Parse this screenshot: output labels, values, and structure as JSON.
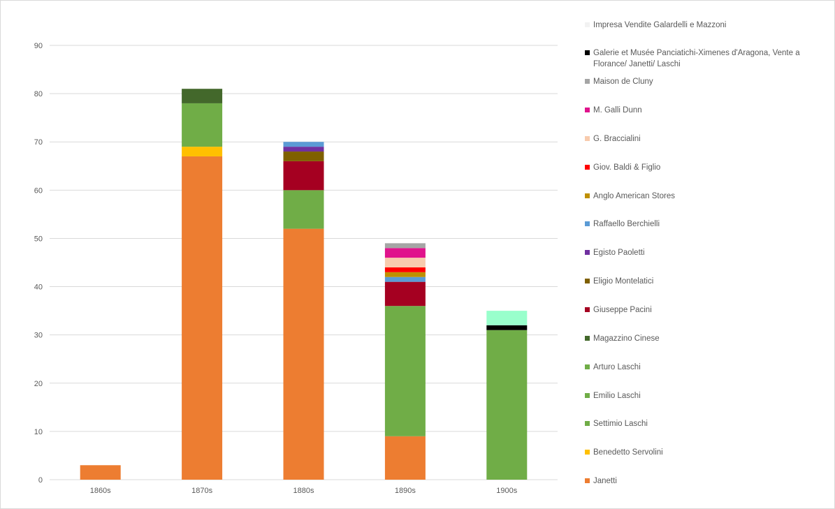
{
  "chart_data": {
    "type": "bar",
    "stacked": true,
    "categories": [
      "1860s",
      "1870s",
      "1880s",
      "1890s",
      "1900s"
    ],
    "ylim": [
      0,
      90
    ],
    "yticks": [
      0,
      10,
      20,
      30,
      40,
      50,
      60,
      70,
      80,
      90
    ],
    "grid": true,
    "legend_position": "right",
    "series": [
      {
        "name": "Janetti",
        "color": "#ED7D31",
        "values": [
          3,
          67,
          52,
          9,
          0
        ]
      },
      {
        "name": "Benedetto Servolini",
        "color": "#FFC000",
        "values": [
          0,
          2,
          0,
          0,
          0
        ]
      },
      {
        "name": "Settimio Laschi",
        "color": "#70AD47",
        "values": [
          0,
          9,
          8,
          27,
          31
        ]
      },
      {
        "name": "Emilio Laschi",
        "color": "#70AD47",
        "values": [
          0,
          0,
          0,
          0,
          0
        ]
      },
      {
        "name": "Arturo Laschi",
        "color": "#70AD47",
        "values": [
          0,
          0,
          0,
          0,
          0
        ]
      },
      {
        "name": "Magazzino Cinese",
        "color": "#43682B",
        "values": [
          0,
          3,
          0,
          0,
          0
        ]
      },
      {
        "name": "Giuseppe Pacini",
        "color": "#A50021",
        "values": [
          0,
          0,
          6,
          5,
          0
        ]
      },
      {
        "name": "Eligio Montelatici",
        "color": "#7F6000",
        "values": [
          0,
          0,
          2,
          0,
          0
        ]
      },
      {
        "name": "Egisto Paoletti",
        "color": "#7030A0",
        "values": [
          0,
          0,
          1,
          0,
          0
        ]
      },
      {
        "name": "Raffaello Berchielli",
        "color": "#5B9BD5",
        "values": [
          0,
          0,
          1,
          1,
          0
        ]
      },
      {
        "name": "Anglo American Stores",
        "color": "#BF9000",
        "values": [
          0,
          0,
          0,
          1,
          0
        ]
      },
      {
        "name": "Giov. Baldi & Figlio",
        "color": "#FF0000",
        "values": [
          0,
          0,
          0,
          1,
          0
        ]
      },
      {
        "name": "G. Braccialini",
        "color": "#F8CBAD",
        "values": [
          0,
          0,
          0,
          2,
          0
        ]
      },
      {
        "name": "M. Galli Dunn",
        "color": "#E0138C",
        "values": [
          0,
          0,
          0,
          2,
          0
        ]
      },
      {
        "name": "Maison de Cluny",
        "color": "#A5A5A5",
        "values": [
          0,
          0,
          0,
          1,
          0
        ]
      },
      {
        "name": "Galerie et Musée Panciatichi-Ximenes d'Aragona, Vente a Florance/ Janetti/ Laschi",
        "color": "#000000",
        "values": [
          0,
          0,
          0,
          0,
          1
        ]
      },
      {
        "name": "Impresa Vendite Galardelli e Mazzoni",
        "color": "#99FFCC",
        "values": [
          0,
          0,
          0,
          0,
          3
        ]
      }
    ],
    "legend_order": [
      "Impresa Vendite Galardelli e Mazzoni",
      "Galerie et Musée Panciatichi-Ximenes d'Aragona, Vente a Florance/ Janetti/ Laschi",
      "Maison de Cluny",
      "M. Galli Dunn",
      "G. Braccialini",
      "Giov. Baldi & Figlio",
      "Anglo American Stores",
      "Raffaello Berchielli",
      "Egisto Paoletti",
      "Eligio Montelatici",
      "Giuseppe Pacini",
      "Magazzino Cinese",
      "Arturo Laschi",
      "Emilio Laschi",
      "Settimio Laschi",
      "Benedetto Servolini",
      "Janetti"
    ],
    "legend_swatch_colors": {
      "Impresa Vendite Galardelli e Mazzoni": "#F2F2F2"
    }
  }
}
